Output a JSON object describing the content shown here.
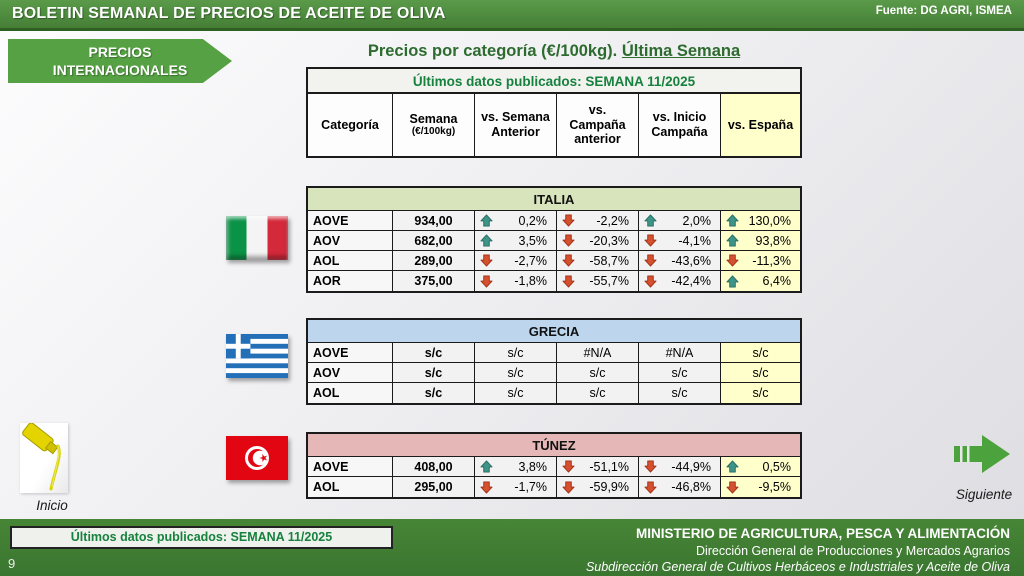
{
  "header": {
    "title": "BOLETIN SEMANAL DE PRECIOS DE ACEITE DE OLIVA",
    "source": "Fuente: DG AGRI, ISMEA"
  },
  "banner": {
    "line1": "PRECIOS",
    "line2": "INTERNACIONALES"
  },
  "page_title": {
    "prefix": "Precios por categoría (€/100kg). ",
    "underlined": "Última Semana"
  },
  "table": {
    "published": "Últimos datos publicados: SEMANA 11/2025",
    "columns": [
      {
        "label": "Categoría"
      },
      {
        "label": "Semana",
        "sub": "(€/100kg)"
      },
      {
        "label": "vs. Semana Anterior"
      },
      {
        "label": "vs. Campaña anterior"
      },
      {
        "label": "vs. Inicio Campaña"
      },
      {
        "label": "vs. España"
      }
    ]
  },
  "countries": [
    {
      "name": "ITALIA",
      "flag": "italy",
      "header_bg": "#d8e4bc",
      "rows": [
        {
          "cat": "AOVE",
          "price": "934,00",
          "cells": [
            {
              "dir": "up",
              "val": "0,2%"
            },
            {
              "dir": "down",
              "val": "-2,2%"
            },
            {
              "dir": "up",
              "val": "2,0%"
            },
            {
              "dir": "up",
              "val": "130,0%"
            }
          ]
        },
        {
          "cat": "AOV",
          "price": "682,00",
          "cells": [
            {
              "dir": "up",
              "val": "3,5%"
            },
            {
              "dir": "down",
              "val": "-20,3%"
            },
            {
              "dir": "down",
              "val": "-4,1%"
            },
            {
              "dir": "up",
              "val": "93,8%"
            }
          ]
        },
        {
          "cat": "AOL",
          "price": "289,00",
          "cells": [
            {
              "dir": "down",
              "val": "-2,7%"
            },
            {
              "dir": "down",
              "val": "-58,7%"
            },
            {
              "dir": "down",
              "val": "-43,6%"
            },
            {
              "dir": "down",
              "val": "-11,3%"
            }
          ]
        },
        {
          "cat": "AOR",
          "price": "375,00",
          "cells": [
            {
              "dir": "down",
              "val": "-1,8%"
            },
            {
              "dir": "down",
              "val": "-55,7%"
            },
            {
              "dir": "down",
              "val": "-42,4%"
            },
            {
              "dir": "up",
              "val": "6,4%"
            }
          ]
        }
      ]
    },
    {
      "name": "GRECIA",
      "flag": "greece",
      "header_bg": "#bdd6ee",
      "rows": [
        {
          "cat": "AOVE",
          "price": "s/c",
          "cells": [
            {
              "dir": null,
              "val": "s/c"
            },
            {
              "dir": null,
              "val": "#N/A"
            },
            {
              "dir": null,
              "val": "#N/A"
            },
            {
              "dir": null,
              "val": "s/c"
            }
          ]
        },
        {
          "cat": "AOV",
          "price": "s/c",
          "cells": [
            {
              "dir": null,
              "val": "s/c"
            },
            {
              "dir": null,
              "val": "s/c"
            },
            {
              "dir": null,
              "val": "s/c"
            },
            {
              "dir": null,
              "val": "s/c"
            }
          ]
        },
        {
          "cat": "AOL",
          "price": "s/c",
          "cells": [
            {
              "dir": null,
              "val": "s/c"
            },
            {
              "dir": null,
              "val": "s/c"
            },
            {
              "dir": null,
              "val": "s/c"
            },
            {
              "dir": null,
              "val": "s/c"
            }
          ]
        }
      ]
    },
    {
      "name": "TÚNEZ",
      "flag": "tunisia",
      "header_bg": "#e5b8b7",
      "rows": [
        {
          "cat": "AOVE",
          "price": "408,00",
          "cells": [
            {
              "dir": "up",
              "val": "3,8%"
            },
            {
              "dir": "down",
              "val": "-51,1%"
            },
            {
              "dir": "down",
              "val": "-44,9%"
            },
            {
              "dir": "up",
              "val": "0,5%"
            }
          ]
        },
        {
          "cat": "AOL",
          "price": "295,00",
          "cells": [
            {
              "dir": "down",
              "val": "-1,7%"
            },
            {
              "dir": "down",
              "val": "-59,9%"
            },
            {
              "dir": "down",
              "val": "-46,8%"
            },
            {
              "dir": "down",
              "val": "-9,5%"
            }
          ]
        }
      ]
    }
  ],
  "nav": {
    "inicio": "Inicio",
    "siguiente": "Siguiente"
  },
  "footer": {
    "published": "Últimos datos publicados: SEMANA 11/2025",
    "page_number": "9",
    "ministry_line1": "MINISTERIO DE AGRICULTURA, PESCA Y ALIMENTACIÓN",
    "ministry_line2": "Dirección General de Producciones y Mercados Agrarios",
    "ministry_line3": "Subdirección General de Cultivos Herbáceos e Industriales y Aceite de Oliva"
  },
  "colors": {
    "arrow_up": "#3f9488",
    "arrow_up_dark": "#256b62",
    "arrow_down": "#d4502e",
    "arrow_down_dark": "#9c3117",
    "espana_col_bg": "#ffffcc"
  }
}
